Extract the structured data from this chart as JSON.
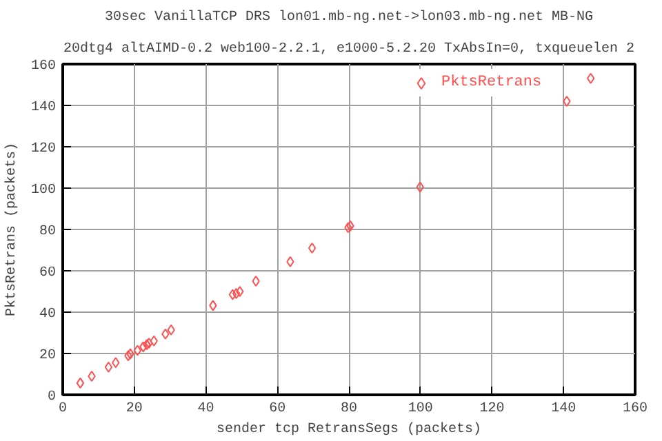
{
  "chart_data": {
    "type": "scatter",
    "title": "30sec VanillaTCP DRS lon01.mb-ng.net->lon03.mb-ng.net MB-NG",
    "subtitle": "20dtg4 altAIMD-0.2 web100-2.2.1, e1000-5.2.20 TxAbsIn=0, txqueuelen 2",
    "xlabel": "sender tcp RetransSegs (packets)",
    "ylabel": "PktsRetrans (packets)",
    "series": [
      {
        "name": "PktsRetrans",
        "color": "#ff5050",
        "x": [
          4.9,
          8.1,
          12.8,
          14.8,
          18.3,
          18.9,
          20.9,
          22.5,
          23.5,
          24.1,
          25.5,
          28.7,
          30.3,
          42.0,
          47.5,
          48.5,
          49.5,
          54,
          63.6,
          69.7,
          79.8,
          80.4,
          99.9,
          140.9,
          147.6
        ],
        "values": [
          5.7,
          9.0,
          13.4,
          15.6,
          18.9,
          19.8,
          21.5,
          23.2,
          24.3,
          25.0,
          26.1,
          29.4,
          31.4,
          43.2,
          48.5,
          49,
          50,
          55,
          64.4,
          71.0,
          80.9,
          81.7,
          100.5,
          142.0,
          153.1
        ]
      }
    ],
    "xlim": [
      0,
      160
    ],
    "ylim": [
      0,
      160
    ],
    "xticks": [
      0,
      20,
      40,
      60,
      80,
      100,
      120,
      140,
      160
    ],
    "yticks": [
      0,
      20,
      40,
      60,
      80,
      100,
      120,
      140,
      160
    ],
    "grid": true,
    "legend": "top right",
    "marker": "diamond"
  }
}
